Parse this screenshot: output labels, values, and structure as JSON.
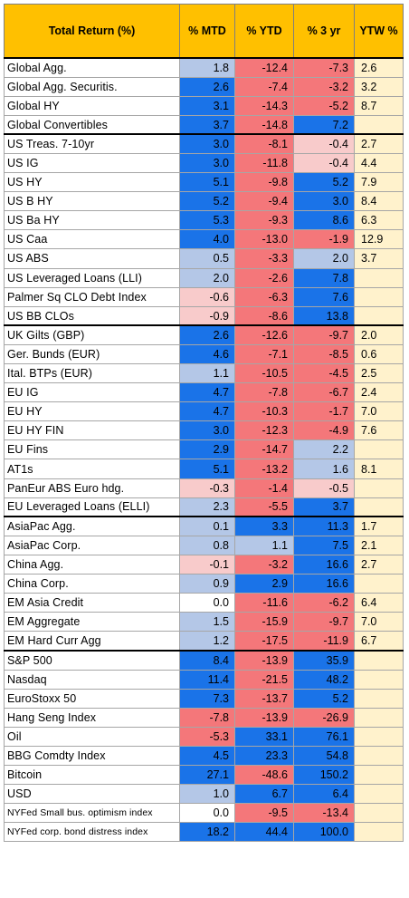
{
  "header": {
    "label": "Total Return (%)",
    "mtd": "% MTD",
    "ytd": "% YTD",
    "y3": "% 3 yr",
    "ytw": "YTW %"
  },
  "colors": {
    "strong_positive": "#1a73e8",
    "weak_positive": "#b4c7e7",
    "strong_negative": "#f4777a",
    "weak_negative": "#f8cbcb",
    "neutral": "#ffffff",
    "ytw_background": "#fff2cc",
    "header_background": "#ffc000"
  },
  "groups": [
    {
      "rows": [
        {
          "name": "Global Agg.",
          "mtd": "1.8",
          "ytd": "-12.4",
          "y3": "-7.3",
          "ytw": "2.6"
        },
        {
          "name": "Global Agg. Securitis.",
          "mtd": "2.6",
          "ytd": "-7.4",
          "y3": "-3.2",
          "ytw": "3.2"
        },
        {
          "name": "Global HY",
          "mtd": "3.1",
          "ytd": "-14.3",
          "y3": "-5.2",
          "ytw": "8.7"
        },
        {
          "name": "Global Convertibles",
          "mtd": "3.7",
          "ytd": "-14.8",
          "y3": "7.2",
          "ytw": ""
        }
      ]
    },
    {
      "rows": [
        {
          "name": "US Treas. 7-10yr",
          "mtd": "3.0",
          "ytd": "-8.1",
          "y3": "-0.4",
          "ytw": "2.7"
        },
        {
          "name": "US IG",
          "mtd": "3.0",
          "ytd": "-11.8",
          "y3": "-0.4",
          "ytw": "4.4"
        },
        {
          "name": "US HY",
          "mtd": "5.1",
          "ytd": "-9.8",
          "y3": "5.2",
          "ytw": "7.9"
        },
        {
          "name": "US B HY",
          "mtd": "5.2",
          "ytd": "-9.4",
          "y3": "3.0",
          "ytw": "8.4"
        },
        {
          "name": "US Ba HY",
          "mtd": "5.3",
          "ytd": "-9.3",
          "y3": "8.6",
          "ytw": "6.3"
        },
        {
          "name": "US Caa",
          "mtd": "4.0",
          "ytd": "-13.0",
          "y3": "-1.9",
          "ytw": "12.9"
        },
        {
          "name": "US ABS",
          "mtd": "0.5",
          "ytd": "-3.3",
          "y3": "2.0",
          "ytw": "3.7"
        },
        {
          "name": "US Leveraged Loans (LLI)",
          "mtd": "2.0",
          "ytd": "-2.6",
          "y3": "7.8",
          "ytw": ""
        },
        {
          "name": "Palmer Sq CLO Debt Index",
          "mtd": "-0.6",
          "ytd": "-6.3",
          "y3": "7.6",
          "ytw": ""
        },
        {
          "name": "US BB CLOs",
          "mtd": "-0.9",
          "ytd": "-8.6",
          "y3": "13.8",
          "ytw": ""
        }
      ]
    },
    {
      "rows": [
        {
          "name": "UK Gilts (GBP)",
          "mtd": "2.6",
          "ytd": "-12.6",
          "y3": "-9.7",
          "ytw": "2.0"
        },
        {
          "name": "Ger. Bunds (EUR)",
          "mtd": "4.6",
          "ytd": "-7.1",
          "y3": "-8.5",
          "ytw": "0.6"
        },
        {
          "name": "Ital. BTPs (EUR)",
          "mtd": "1.1",
          "ytd": "-10.5",
          "y3": "-4.5",
          "ytw": "2.5"
        },
        {
          "name": "EU IG",
          "mtd": "4.7",
          "ytd": "-7.8",
          "y3": "-6.7",
          "ytw": "2.4"
        },
        {
          "name": "EU HY",
          "mtd": "4.7",
          "ytd": "-10.3",
          "y3": "-1.7",
          "ytw": "7.0"
        },
        {
          "name": "EU HY FIN",
          "mtd": "3.0",
          "ytd": "-12.3",
          "y3": "-4.9",
          "ytw": "7.6"
        },
        {
          "name": "EU Fins",
          "mtd": "2.9",
          "ytd": "-14.7",
          "y3": "2.2",
          "ytw": ""
        },
        {
          "name": "AT1s",
          "mtd": "5.1",
          "ytd": "-13.2",
          "y3": "1.6",
          "ytw": "8.1"
        },
        {
          "name": "PanEur ABS Euro hdg.",
          "mtd": "-0.3",
          "ytd": "-1.4",
          "y3": "-0.5",
          "ytw": ""
        },
        {
          "name": "EU Leveraged Loans (ELLI)",
          "mtd": "2.3",
          "ytd": "-5.5",
          "y3": "3.7",
          "ytw": ""
        }
      ]
    },
    {
      "rows": [
        {
          "name": "AsiaPac Agg.",
          "mtd": "0.1",
          "ytd": "3.3",
          "y3": "11.3",
          "ytw": "1.7"
        },
        {
          "name": "AsiaPac Corp.",
          "mtd": "0.8",
          "ytd": "1.1",
          "y3": "7.5",
          "ytw": "2.1"
        },
        {
          "name": "China Agg.",
          "mtd": "-0.1",
          "ytd": "-3.2",
          "y3": "16.6",
          "ytw": "2.7"
        },
        {
          "name": "China Corp.",
          "mtd": "0.9",
          "ytd": "2.9",
          "y3": "16.6",
          "ytw": ""
        },
        {
          "name": "EM Asia Credit",
          "mtd": "0.0",
          "ytd": "-11.6",
          "y3": "-6.2",
          "ytw": "6.4"
        },
        {
          "name": "EM Aggregate",
          "mtd": "1.5",
          "ytd": "-15.9",
          "y3": "-9.7",
          "ytw": "7.0"
        },
        {
          "name": "EM Hard Curr Agg",
          "mtd": "1.2",
          "ytd": "-17.5",
          "y3": "-11.9",
          "ytw": "6.7"
        }
      ]
    },
    {
      "rows": [
        {
          "name": "S&P 500",
          "mtd": "8.4",
          "ytd": "-13.9",
          "y3": "35.9",
          "ytw": ""
        },
        {
          "name": "Nasdaq",
          "mtd": "11.4",
          "ytd": "-21.5",
          "y3": "48.2",
          "ytw": ""
        },
        {
          "name": "EuroStoxx 50",
          "mtd": "7.3",
          "ytd": "-13.7",
          "y3": "5.2",
          "ytw": ""
        },
        {
          "name": "Hang Seng Index",
          "mtd": "-7.8",
          "ytd": "-13.9",
          "y3": "-26.9",
          "ytw": ""
        },
        {
          "name": "Oil",
          "mtd": "-5.3",
          "ytd": "33.1",
          "y3": "76.1",
          "ytw": ""
        },
        {
          "name": "BBG Comdty Index",
          "mtd": "4.5",
          "ytd": "23.3",
          "y3": "54.8",
          "ytw": ""
        },
        {
          "name": "Bitcoin",
          "mtd": "27.1",
          "ytd": "-48.6",
          "y3": "150.2",
          "ytw": ""
        },
        {
          "name": "USD",
          "mtd": "1.0",
          "ytd": "6.7",
          "y3": "6.4",
          "ytw": ""
        },
        {
          "name": "NYFed Small bus. optimism index",
          "mtd": "0.0",
          "ytd": "-9.5",
          "y3": "-13.4",
          "ytw": "",
          "small": true
        },
        {
          "name": "NYFed corp. bond distress index",
          "mtd": "18.2",
          "ytd": "44.4",
          "y3": "100.0",
          "ytw": "",
          "small": true
        }
      ]
    }
  ]
}
